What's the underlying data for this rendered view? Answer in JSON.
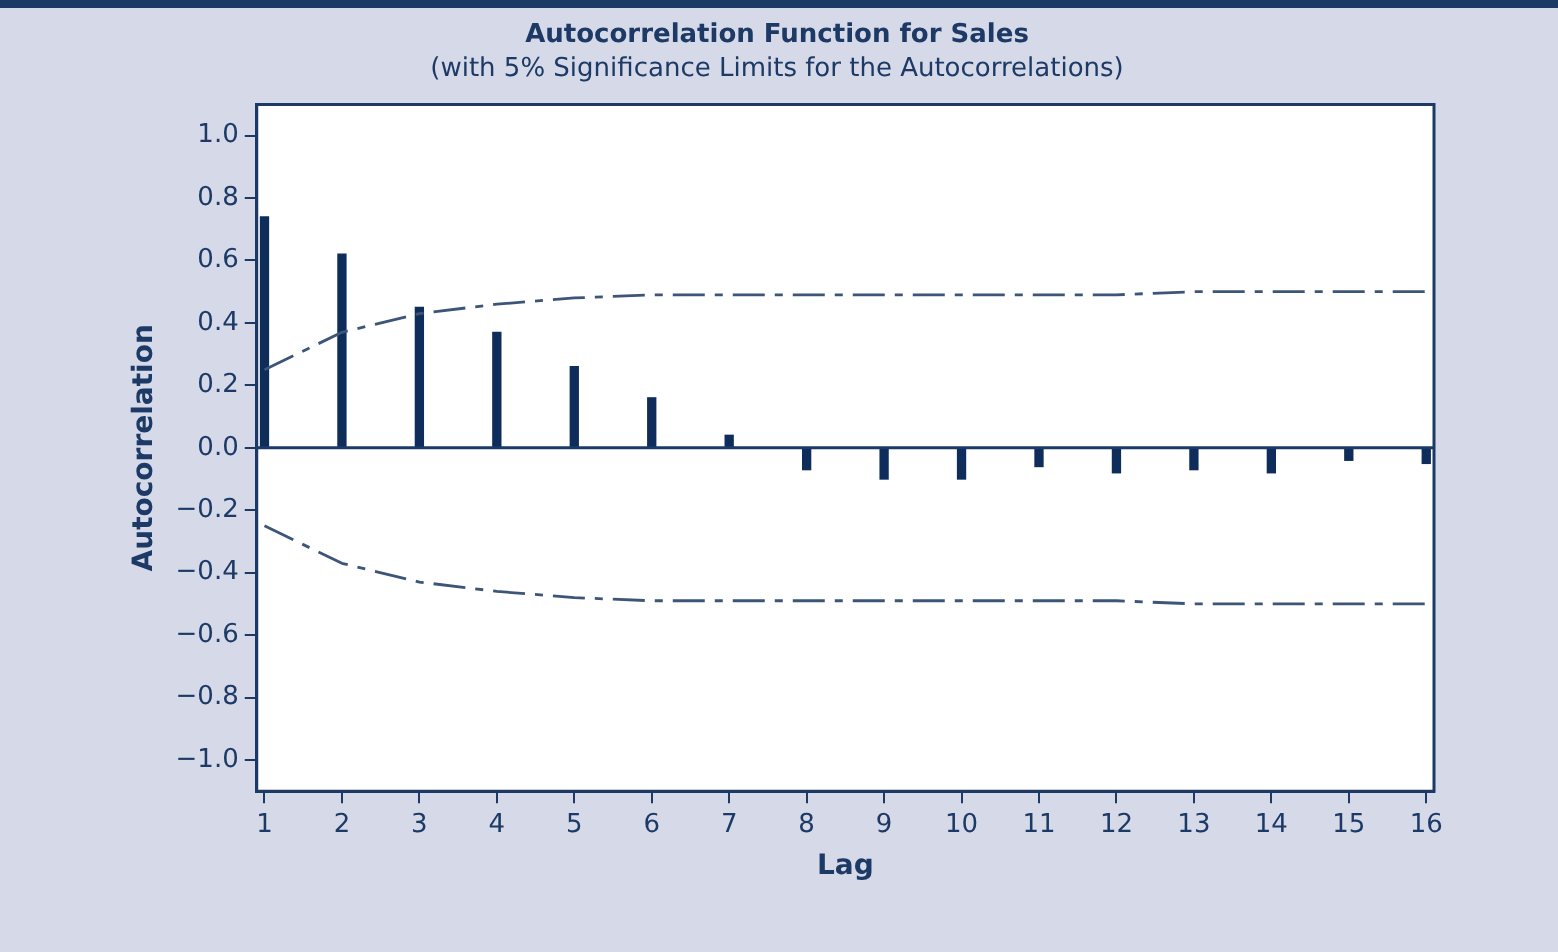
{
  "chart_data": {
    "type": "bar",
    "title": "Autocorrelation Function for Sales",
    "subtitle": "(with 5% Significance Limits for the Autocorrelations)",
    "xlabel": "Lag",
    "ylabel": "Autocorrelation",
    "x": [
      1,
      2,
      3,
      4,
      5,
      6,
      7,
      8,
      9,
      10,
      11,
      12,
      13,
      14,
      15,
      16
    ],
    "xlim": [
      0.9,
      16.1
    ],
    "xticks": [
      1,
      2,
      3,
      4,
      5,
      6,
      7,
      8,
      9,
      10,
      11,
      12,
      13,
      14,
      15,
      16
    ],
    "series": [
      {
        "color": "#0f2d5a",
        "values": [
          0.74,
          0.62,
          0.45,
          0.37,
          0.26,
          0.16,
          0.04,
          -0.07,
          -0.1,
          -0.1,
          -0.06,
          -0.08,
          -0.07,
          -0.08,
          -0.04,
          -0.05
        ]
      },
      {
        "type": "line",
        "color": "#3c5578",
        "line_style": "dashed",
        "values": [
          0.25,
          0.37,
          0.43,
          0.46,
          0.48,
          0.49,
          0.49,
          0.49,
          0.49,
          0.49,
          0.49,
          0.49,
          0.5,
          0.5,
          0.5,
          0.5
        ]
      },
      {
        "type": "line",
        "color": "#3c5578",
        "line_style": "dashed",
        "values": [
          -0.25,
          -0.37,
          -0.43,
          -0.46,
          -0.48,
          -0.49,
          -0.49,
          -0.49,
          -0.49,
          -0.49,
          -0.49,
          -0.49,
          -0.5,
          -0.5,
          -0.5,
          -0.5
        ]
      }
    ],
    "ylim": [
      -1.1,
      1.1
    ],
    "yticks": [
      {
        "value": 1,
        "label": "1.0"
      },
      {
        "value": 0.8,
        "label": "0.8"
      },
      {
        "value": 0.6,
        "label": "0.6"
      },
      {
        "value": 0.4,
        "label": "0.4"
      },
      {
        "value": 0.2,
        "label": "0.2"
      },
      {
        "value": 0,
        "label": "0.0"
      },
      {
        "value": -0.2,
        "label": "−0.2"
      },
      {
        "value": -0.4,
        "label": "−0.4"
      },
      {
        "value": -0.6,
        "label": "−0.6"
      },
      {
        "value": -0.8,
        "label": "−0.8"
      },
      {
        "value": -1,
        "label": "−1.0"
      }
    ],
    "ref_lines": [
      {
        "axis": "y",
        "value": 0,
        "color": "#1a3a6a"
      }
    ],
    "grid": false,
    "legend": false,
    "marker": "none"
  }
}
